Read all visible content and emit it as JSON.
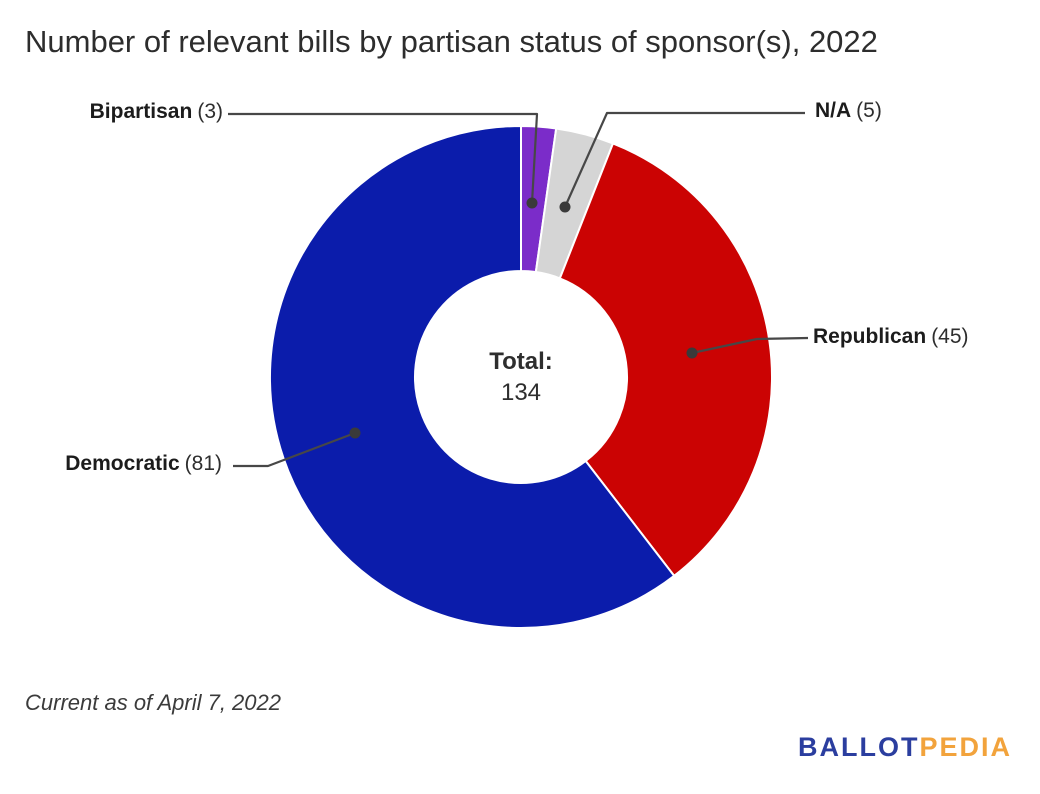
{
  "title": "Number of relevant bills by partisan status of sponsor(s), 2022",
  "footnote": "Current as of April 7, 2022",
  "logo": {
    "ballot": "BALLOT",
    "pedia": "PEDIA",
    "ballot_color": "#2b3e9f",
    "pedia_color": "#f2a33c"
  },
  "center": {
    "label": "Total:",
    "value": "134"
  },
  "callouts": {
    "bipartisan": {
      "name": "Bipartisan",
      "count": "(3)"
    },
    "na": {
      "name": "N/A",
      "count": "(5)"
    },
    "republican": {
      "name": "Republican",
      "count": "(45)"
    },
    "democratic": {
      "name": "Democratic",
      "count": "(81)"
    }
  },
  "chart_data": {
    "type": "pie",
    "subtype": "donut",
    "title": "Number of relevant bills by partisan status of sponsor(s), 2022",
    "total": 134,
    "center_label": "Total:",
    "center_value": 134,
    "start_angle_deg": 0,
    "direction": "clockwise",
    "leader_color": "#474747",
    "dot_color": "#3a3a3a",
    "slices": [
      {
        "label": "Bipartisan",
        "value": 3,
        "color": "#7b2cc9"
      },
      {
        "label": "N/A",
        "value": 5,
        "color": "#d5d5d5"
      },
      {
        "label": "Republican",
        "value": 45,
        "color": "#cb0303"
      },
      {
        "label": "Democratic",
        "value": 81,
        "color": "#0b1cab"
      }
    ]
  }
}
